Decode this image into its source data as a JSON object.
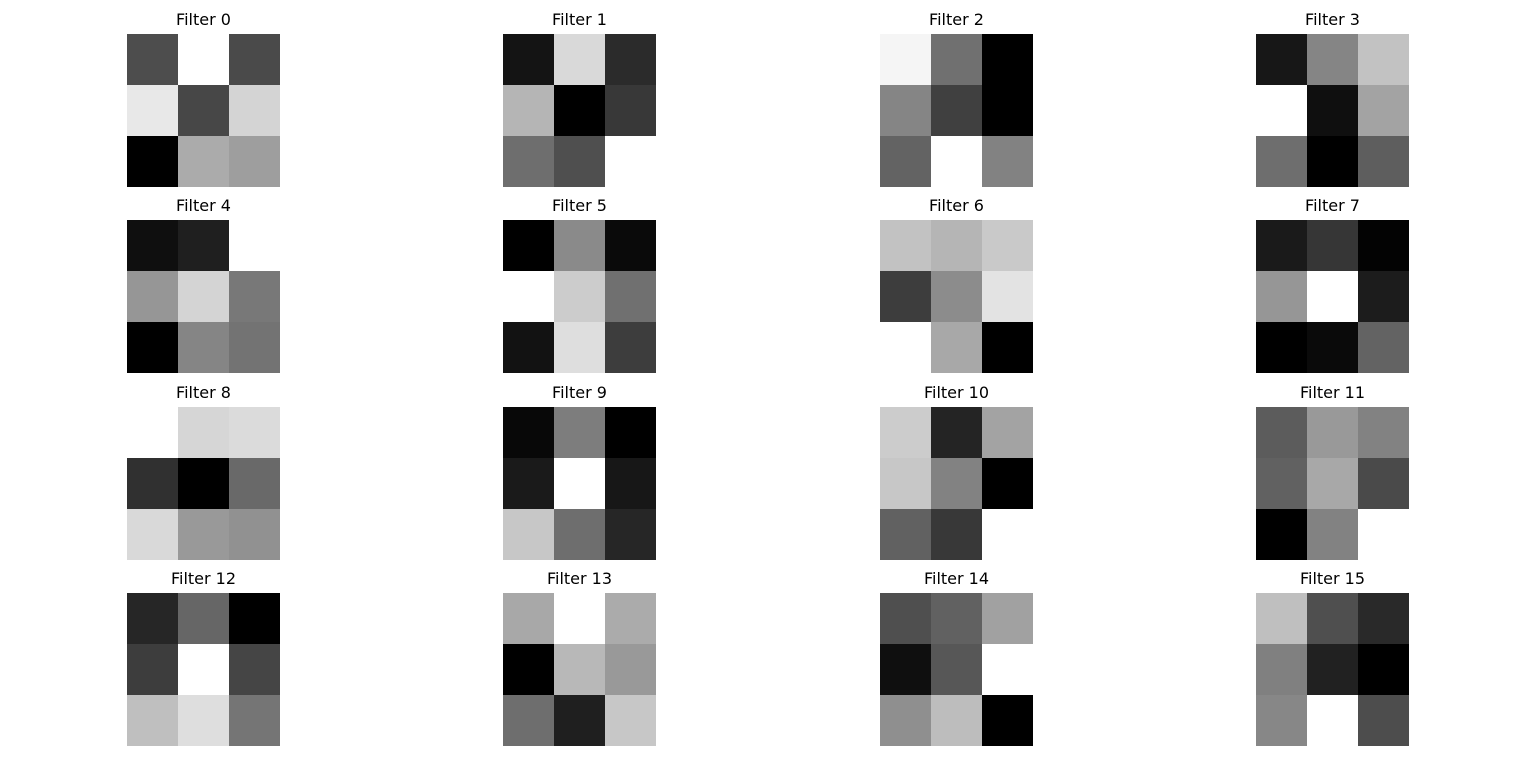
{
  "chart_data": {
    "type": "heatmap",
    "colormap": "gray",
    "grid": false,
    "axes_visible": false,
    "layout": {
      "rows": 4,
      "cols": 4
    },
    "filters": [
      {
        "title": "Filter 0",
        "values": [
          [
            0.3,
            1.0,
            0.29
          ],
          [
            0.91,
            0.28,
            0.83
          ],
          [
            0.0,
            0.67,
            0.62
          ]
        ]
      },
      {
        "title": "Filter 1",
        "values": [
          [
            0.08,
            0.85,
            0.17
          ],
          [
            0.71,
            0.0,
            0.22
          ],
          [
            0.43,
            0.31,
            1.0
          ]
        ]
      },
      {
        "title": "Filter 2",
        "values": [
          [
            0.96,
            0.44,
            0.0
          ],
          [
            0.52,
            0.25,
            0.0
          ],
          [
            0.39,
            1.0,
            0.51
          ]
        ]
      },
      {
        "title": "Filter 3",
        "values": [
          [
            0.09,
            0.52,
            0.76
          ],
          [
            1.0,
            0.06,
            0.64
          ],
          [
            0.43,
            0.0,
            0.37
          ]
        ]
      },
      {
        "title": "Filter 4",
        "values": [
          [
            0.06,
            0.12,
            1.0
          ],
          [
            0.59,
            0.83,
            0.47
          ],
          [
            0.0,
            0.52,
            0.45
          ]
        ]
      },
      {
        "title": "Filter 5",
        "values": [
          [
            0.0,
            0.54,
            0.04
          ],
          [
            1.0,
            0.8,
            0.44
          ],
          [
            0.07,
            0.87,
            0.24
          ]
        ]
      },
      {
        "title": "Filter 6",
        "values": [
          [
            0.76,
            0.71,
            0.79
          ],
          [
            0.24,
            0.55,
            0.89
          ],
          [
            1.0,
            0.66,
            0.0
          ]
        ]
      },
      {
        "title": "Filter 7",
        "values": [
          [
            0.1,
            0.21,
            0.01
          ],
          [
            0.59,
            1.0,
            0.11
          ],
          [
            0.0,
            0.04,
            0.39
          ]
        ]
      },
      {
        "title": "Filter 8",
        "values": [
          [
            1.0,
            0.84,
            0.86
          ],
          [
            0.19,
            0.0,
            0.41
          ],
          [
            0.85,
            0.6,
            0.57
          ]
        ]
      },
      {
        "title": "Filter 9",
        "values": [
          [
            0.03,
            0.49,
            0.0
          ],
          [
            0.1,
            1.0,
            0.09
          ],
          [
            0.78,
            0.43,
            0.15
          ]
        ]
      },
      {
        "title": "Filter 10",
        "values": [
          [
            0.8,
            0.14,
            0.64
          ],
          [
            0.78,
            0.51,
            0.0
          ],
          [
            0.38,
            0.22,
            1.0
          ]
        ]
      },
      {
        "title": "Filter 11",
        "values": [
          [
            0.36,
            0.6,
            0.51
          ],
          [
            0.38,
            0.66,
            0.29
          ],
          [
            0.0,
            0.51,
            1.0
          ]
        ]
      },
      {
        "title": "Filter 12",
        "values": [
          [
            0.15,
            0.4,
            0.0
          ],
          [
            0.24,
            1.0,
            0.27
          ],
          [
            0.75,
            0.87,
            0.46
          ]
        ]
      },
      {
        "title": "Filter 13",
        "values": [
          [
            0.66,
            1.0,
            0.67
          ],
          [
            0.0,
            0.72,
            0.6
          ],
          [
            0.43,
            0.12,
            0.78
          ]
        ]
      },
      {
        "title": "Filter 14",
        "values": [
          [
            0.31,
            0.38,
            0.63
          ],
          [
            0.06,
            0.34,
            1.0
          ],
          [
            0.56,
            0.74,
            0.0
          ]
        ]
      },
      {
        "title": "Filter 15",
        "values": [
          [
            0.75,
            0.31,
            0.16
          ],
          [
            0.5,
            0.13,
            0.0
          ],
          [
            0.53,
            1.0,
            0.3
          ]
        ]
      }
    ]
  }
}
